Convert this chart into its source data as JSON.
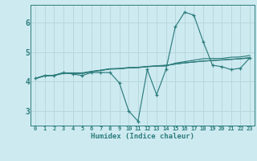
{
  "xlabel": "Humidex (Indice chaleur)",
  "ylabel": "",
  "bg_color": "#cdeaf0",
  "line_color": "#2d7d7d",
  "grid_color": "#b8d8de",
  "xlim": [
    -0.5,
    23.5
  ],
  "ylim": [
    2.5,
    6.6
  ],
  "xticks": [
    0,
    1,
    2,
    3,
    4,
    5,
    6,
    7,
    8,
    9,
    10,
    11,
    12,
    13,
    14,
    15,
    16,
    17,
    18,
    19,
    20,
    21,
    22,
    23
  ],
  "yticks": [
    3,
    4,
    5,
    6
  ],
  "series": [
    [
      4.1,
      4.2,
      4.2,
      4.3,
      4.25,
      4.2,
      4.3,
      4.3,
      4.3,
      3.95,
      3.0,
      2.65,
      4.4,
      3.55,
      4.4,
      5.85,
      6.35,
      6.25,
      5.35,
      4.55,
      4.5,
      4.4,
      4.45,
      4.8
    ],
    [
      4.1,
      4.2,
      4.2,
      4.27,
      4.27,
      4.27,
      4.33,
      4.38,
      4.42,
      4.43,
      4.46,
      4.47,
      4.5,
      4.52,
      4.52,
      4.62,
      4.67,
      4.72,
      4.77,
      4.78,
      4.78,
      4.82,
      4.83,
      4.88
    ],
    [
      4.1,
      4.19,
      4.21,
      4.29,
      4.29,
      4.29,
      4.34,
      4.38,
      4.43,
      4.44,
      4.47,
      4.48,
      4.51,
      4.53,
      4.55,
      4.59,
      4.63,
      4.66,
      4.69,
      4.71,
      4.73,
      4.75,
      4.77,
      4.79
    ],
    [
      4.1,
      4.19,
      4.21,
      4.29,
      4.28,
      4.27,
      4.33,
      4.37,
      4.42,
      4.43,
      4.46,
      4.47,
      4.5,
      4.52,
      4.54,
      4.59,
      4.63,
      4.66,
      4.69,
      4.71,
      4.73,
      4.75,
      4.77,
      4.81
    ]
  ]
}
